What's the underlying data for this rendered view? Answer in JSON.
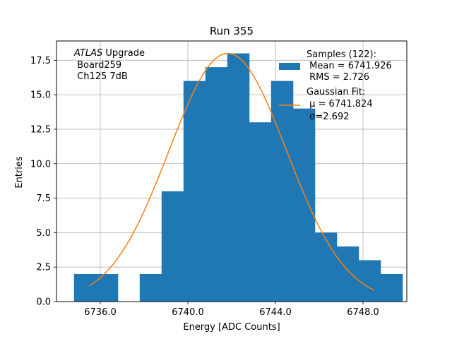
{
  "chart_data": {
    "type": "bar",
    "title": "Run 355",
    "xlabel": "Energy [ADC Counts]",
    "ylabel": "Entries",
    "xlim": [
      6734.0,
      6750.0
    ],
    "ylim": [
      0,
      18.9
    ],
    "grid": true,
    "x_ticks": [
      6736.0,
      6740.0,
      6744.0,
      6748.0
    ],
    "x_tick_labels": [
      "6736.0",
      "6740.0",
      "6744.0",
      "6748.0"
    ],
    "y_ticks": [
      0.0,
      2.5,
      5.0,
      7.5,
      10.0,
      12.5,
      15.0,
      17.5
    ],
    "y_tick_labels": [
      "0.0",
      "2.5",
      "5.0",
      "7.5",
      "10.0",
      "12.5",
      "15.0",
      "17.5"
    ],
    "bin_edges": [
      6734.8,
      6735.8,
      6736.8,
      6737.8,
      6738.8,
      6739.8,
      6740.8,
      6741.8,
      6742.8,
      6743.8,
      6744.8,
      6745.8,
      6746.8,
      6747.8,
      6748.8
    ],
    "counts": [
      2,
      2,
      0,
      2,
      8,
      16,
      17,
      18,
      13,
      16,
      14,
      5,
      4,
      3,
      2
    ],
    "series": [
      {
        "name": "Samples (122):",
        "legend_lines": [
          "Samples (122):",
          " Mean = 6741.926",
          " RMS = 2.726"
        ],
        "color": "#1f77b4"
      },
      {
        "name": "Gaussian Fit:",
        "legend_lines": [
          "Gaussian Fit:",
          " μ = 6741.824",
          " σ=2.692"
        ],
        "color": "#ff7f0e",
        "fit": {
          "amplitude": 18.0,
          "mu": 6741.824,
          "sigma": 2.692,
          "x_range": [
            6735.5,
            6748.5
          ]
        }
      }
    ],
    "annotation": {
      "emph": "ATLAS",
      "lines": [
        " Upgrade",
        " Board259",
        " Ch125 7dB"
      ]
    }
  }
}
